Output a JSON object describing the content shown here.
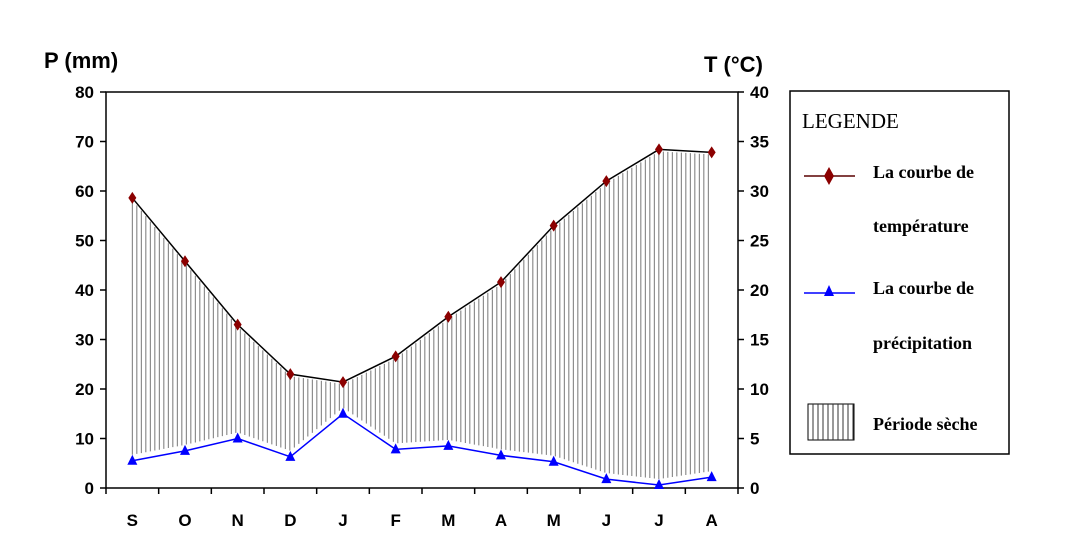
{
  "chart_data": {
    "type": "line",
    "categories": [
      "S",
      "O",
      "N",
      "D",
      "J",
      "F",
      "M",
      "A",
      "M",
      "J",
      "J",
      "A"
    ],
    "y_left_label": "P (mm)",
    "y_right_label": "T (°C)",
    "y_left_range": [
      0,
      80
    ],
    "y_right_range": [
      0,
      40
    ],
    "y_left_ticks": [
      "0",
      "10",
      "20",
      "30",
      "40",
      "50",
      "60",
      "70",
      "80"
    ],
    "y_right_ticks": [
      "0",
      "5",
      "10",
      "15",
      "20",
      "25",
      "30",
      "35",
      "40"
    ],
    "grid": false,
    "series": [
      {
        "name": "La courbe de température",
        "axis": "right",
        "color": "#8b0000",
        "marker": "diamond",
        "values": [
          29.3,
          22.9,
          16.5,
          11.5,
          10.7,
          13.3,
          17.3,
          20.8,
          26.5,
          31.0,
          34.2,
          33.9
        ]
      },
      {
        "name": "La courbe de précipitation",
        "axis": "left",
        "color": "#0000ff",
        "marker": "triangle",
        "values": [
          5.5,
          7.5,
          10.0,
          6.3,
          15.0,
          7.8,
          8.5,
          6.6,
          5.3,
          1.8,
          0.6,
          2.2
        ]
      }
    ],
    "shaded_region": "Période sèche",
    "legend": {
      "position": "right",
      "title": "LEGENDE",
      "entries": [
        {
          "line1": "La courbe de",
          "line2": "température"
        },
        {
          "line1": "La courbe de",
          "line2": "précipitation"
        },
        {
          "line1": "Période sèche"
        }
      ]
    }
  }
}
